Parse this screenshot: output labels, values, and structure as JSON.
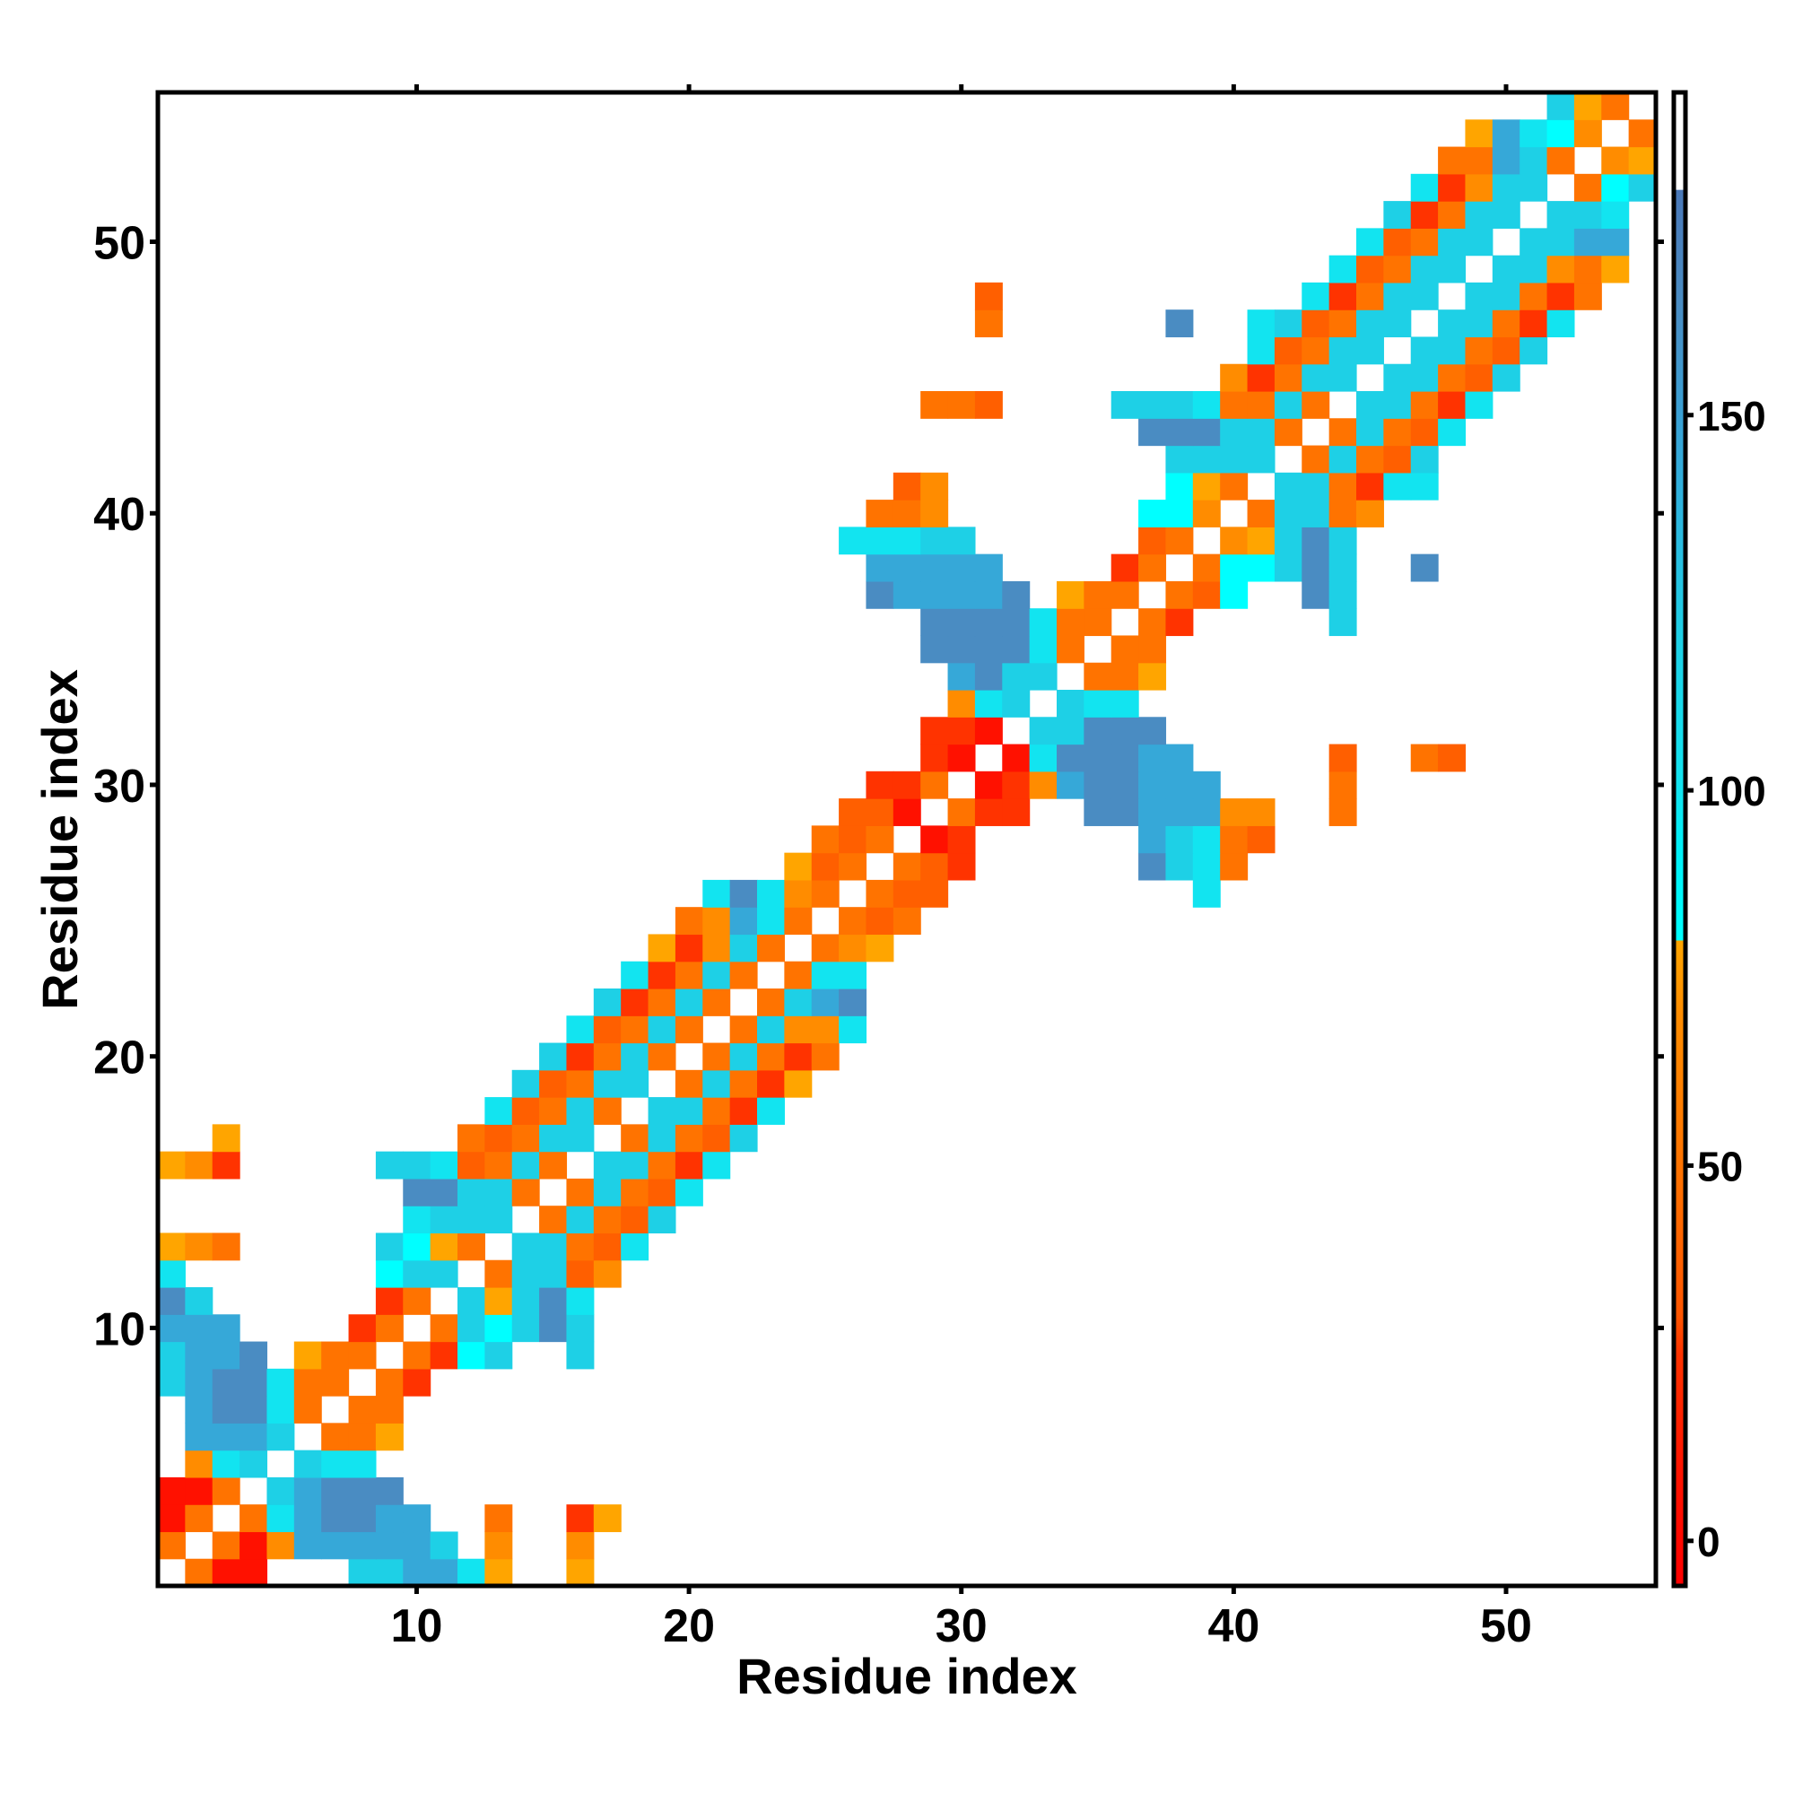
{
  "chart_data": {
    "type": "heatmap",
    "title": "",
    "xlabel": "Residue index",
    "ylabel": "Residue index",
    "xlim": [
      1,
      55
    ],
    "ylim": [
      1,
      55
    ],
    "n": 55,
    "x_ticks": [
      10,
      20,
      30,
      40,
      50
    ],
    "y_ticks": [
      10,
      20,
      30,
      40,
      50
    ],
    "x_tick_labels": [
      "10",
      "20",
      "30",
      "40",
      "50"
    ],
    "y_tick_labels": [
      "10",
      "20",
      "30",
      "40",
      "50"
    ],
    "grid": false,
    "colorbar": {
      "placement": "right",
      "range": [
        -6,
        193
      ],
      "ticks": [
        0,
        50,
        100,
        150
      ],
      "tick_labels": [
        "0",
        "50",
        "100",
        "150"
      ],
      "stops": [
        [
          -6,
          "#ff0000"
        ],
        [
          10,
          "#ff1500"
        ],
        [
          25,
          "#ff3300"
        ],
        [
          30,
          "#ff5500"
        ],
        [
          50,
          "#ff7300"
        ],
        [
          70,
          "#ff8c00"
        ],
        [
          80,
          "#ffa500"
        ],
        [
          80.01,
          "#00ffff"
        ],
        [
          92,
          "#00f0f8"
        ],
        [
          100,
          "#12e4f0"
        ],
        [
          120,
          "#1ed0e6"
        ],
        [
          140,
          "#30b0dc"
        ],
        [
          150,
          "#3aa0d4"
        ],
        [
          165,
          "#4a8cc2"
        ],
        [
          180,
          "#4a78b8"
        ],
        [
          180.01,
          "#ffffff"
        ],
        [
          193,
          "#ffffff"
        ]
      ]
    },
    "palette": {
      "R": "#ff1100",
      "r": "#ff3300",
      "o": "#ff5f00",
      "O": "#ff7300",
      "a": "#ff8c00",
      "y": "#ffa500",
      "c": "#00ffff",
      "C": "#12e4f0",
      "d": "#1ed0e6",
      "b": "#36a8d8",
      "B": "#4a8cc2"
    },
    "rows_note_order": "row 1 first; tokens are column+color code",
    "rows": [
      "2O 3R 4R 8d 9d 10b 11b 12C 13y 16y",
      "1O 3O 4R 5a 6b 7b 8b 9b 10b 11d 13a 16a",
      "1R 2O 4O 5C 6b 7B 8B 9b 10b 13O 16r 17y",
      "1R 2R 3O 5d 6b 7B 8B 9B",
      "2a 3C 4d 6d 7C 8C",
      "2b 3b 4b 5d 7O 8O 9y",
      "2b 3B 4B 5C 6O 8O 9O",
      "1d 2b 3B 4B 5C 6O 7O 9O 10r",
      "1d 2b 3b 4B 6y 7O 8O 10O 11r 12c 13d 16d",
      "1b 2b 3b 8r 9O 11O 12d 13c 14d 15B 16d",
      "1B 2d 9r 10O 12d 13y 14d 15B 16C",
      "1C 9c 10d 11d 13O 14d 15d 16o 17a",
      "1y 2a 3O 9d 10c 11y 12O 14d 15d 16O 17o 18C",
      "10C 11d 12d 13d 15O 16d 17O 18o 19d",
      "10B 11B 12d 13d 14O 16O 17d 18O 19o 20C",
      "1y 2a 3r 9d 10d 11C 12o 13O 14d 15O 17d 18d 19O 20r 21C",
      "3y 12O 13o 14O 15d 16d 18O 19d 20O 21o 22d",
      "13C 14o 15O 16d 17O 19d 20d 21O 22r 23C",
      "14d 15o 16O 17d 18d 20O 21d 22O 23r 24y",
      "15d 16r 17O 18d 19O 21O 22d 23O 24r 25O",
      "16C 17o 18O 19d 20O 22O 23d 24a 25a 26C",
      "17d 18r 19O 20d 21O 23O 24d 25b 26B",
      "18C 19r 20O 21d 22O 24O 25C 26C",
      "19y 20r 21a 22d 23O 25O 26a 27y",
      "20O 21a 22b 23C 24O 26O 27o 28O",
      "21C 22B 23C 24a 25O 27O 28o 29o 39C",
      "24y 25o 26O 28O 29o 30r 37B 38d 39C 40O",
      "25O 26o 27O 29R 30r 37b 38d 39C 40O 41o",
      "26o 27o 28R 30O 31r 32r 35B 36B 37b 38b 39b 40a 41a 44O",
      "27r 28r 29O 31R 32r 33a 34b 35B 36B 37b 38b 39b 44O",
      "29r 30R 32R 33C 34B 35B 36B 37b 38b 44o 47O 48o",
      "29r 30r 31R 33d 34d 35B 36B 37B",
      "30a 31C 32d 34d 35C 36C",
      "30b 31B 32d 33d 35O 36O 37y",
      "29B 30B 31B 32B 33C 34O 36O 37O",
      "29B 30B 31B 32B 33C 34O 35O 37O 38r 44d",
      "27B 28b 29b 30b 31b 32B 34y 35O 36O 38O 39o 40c 43B 44d",
      "27b 28b 29b 30b 31b 36r 37O 39O 40c 41c 42d 43B 44d 47B",
      "26C 27C 28C 29d 30d 37o 38O 40a 41y 42d 43B 44d",
      "27O 28O 29a 37c 38c 39a 41O 42d 43d 44O 45a",
      "28o 29a 38c 39y 40O 42d 43d 44O 45r 46C 47C",
      "38d 39d 40d 41d 43O 44d 45O 46o 47d",
      "37B 38B 39B 40d 41d 42O 44O 45d 46O 47o 48C",
      "29O 30O 31o 36d 37d 38d 39C 40O 41O 42d 43O 45d 46d 47O 48r 49C",
      "40a 41r 42O 43d 44d 46d 47d 48O 49o 50d",
      "41C 42o 43O 44d 45d 47d 48d 49O 50o 51d",
      "31O 38B 41C 42d 43o 44O 45d 46d 48d 49d 50O 51r 52C",
      "31o 43C 44r 45O 46d 47d 49d 50d 51O 52r 53O",
      "44C 45o 46O 47d 48d 50d 51d 52a 53O 54y",
      "45C 46o 47O 48d 49d 51d 52d 53b 54b",
      "46d 47r 48O 49d 50d 52d 53d 54C",
      "47C 48r 49a 50d 51d 53O 54c 55d",
      "48O 49O 50b 51d 52O 54a 55y",
      "49y 50b 51C 52c 53a 55O",
      "52d 53y 54O"
    ]
  }
}
